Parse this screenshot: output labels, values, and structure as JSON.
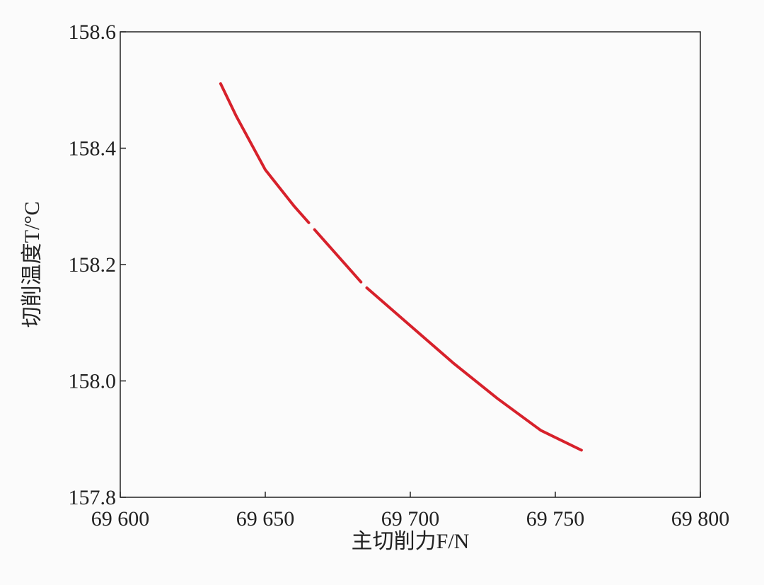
{
  "chart_data": {
    "type": "line",
    "x_label": "主切削力F/N",
    "y_label": "切削温度T/°C",
    "x": [
      69634.6,
      69640,
      69650,
      69660,
      69665,
      69666,
      69667,
      69675,
      69683,
      69684,
      69685,
      69700,
      69715,
      69730,
      69745,
      69759
    ],
    "series": [
      {
        "color": "#d7212b",
        "values": [
          158.511,
          158.455,
          158.363,
          158.3,
          158.272,
          null,
          158.26,
          158.215,
          158.17,
          null,
          158.16,
          158.095,
          158.03,
          157.97,
          157.915,
          157.881
        ]
      }
    ],
    "xlim": [
      69600,
      69800
    ],
    "ylim": [
      157.8,
      158.6
    ],
    "xticks": [
      {
        "value": 69600,
        "label": "69 600"
      },
      {
        "value": 69650,
        "label": "69 650"
      },
      {
        "value": 69700,
        "label": "69 700"
      },
      {
        "value": 69750,
        "label": "69 750"
      },
      {
        "value": 69800,
        "label": "69 800"
      }
    ],
    "yticks": [
      158.6,
      158.4,
      158.2,
      {
        "value": 158.0,
        "label": "158.0"
      },
      157.8
    ]
  }
}
